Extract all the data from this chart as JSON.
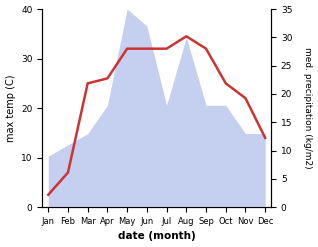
{
  "months": [
    "Jan",
    "Feb",
    "Mar",
    "Apr",
    "May",
    "Jun",
    "Jul",
    "Aug",
    "Sep",
    "Oct",
    "Nov",
    "Dec"
  ],
  "temperature": [
    2.5,
    7,
    25,
    26,
    32,
    32,
    32,
    34.5,
    32,
    25,
    22,
    14
  ],
  "precipitation": [
    9,
    11,
    13,
    18,
    35,
    32,
    18,
    30,
    18,
    18,
    13,
    13
  ],
  "temp_color": "#cc3333",
  "precip_color": "#c5cff0",
  "ylabel_left": "max temp (C)",
  "ylabel_right": "med. precipitation (kg/m2)",
  "xlabel": "date (month)",
  "ylim_left": [
    0,
    40
  ],
  "ylim_right": [
    0,
    35
  ],
  "yticks_left": [
    0,
    10,
    20,
    30,
    40
  ],
  "yticks_right": [
    0,
    5,
    10,
    15,
    20,
    25,
    30,
    35
  ],
  "bg_color": "#ffffff",
  "line_width": 1.8,
  "precip_scale_factor": 0.875
}
